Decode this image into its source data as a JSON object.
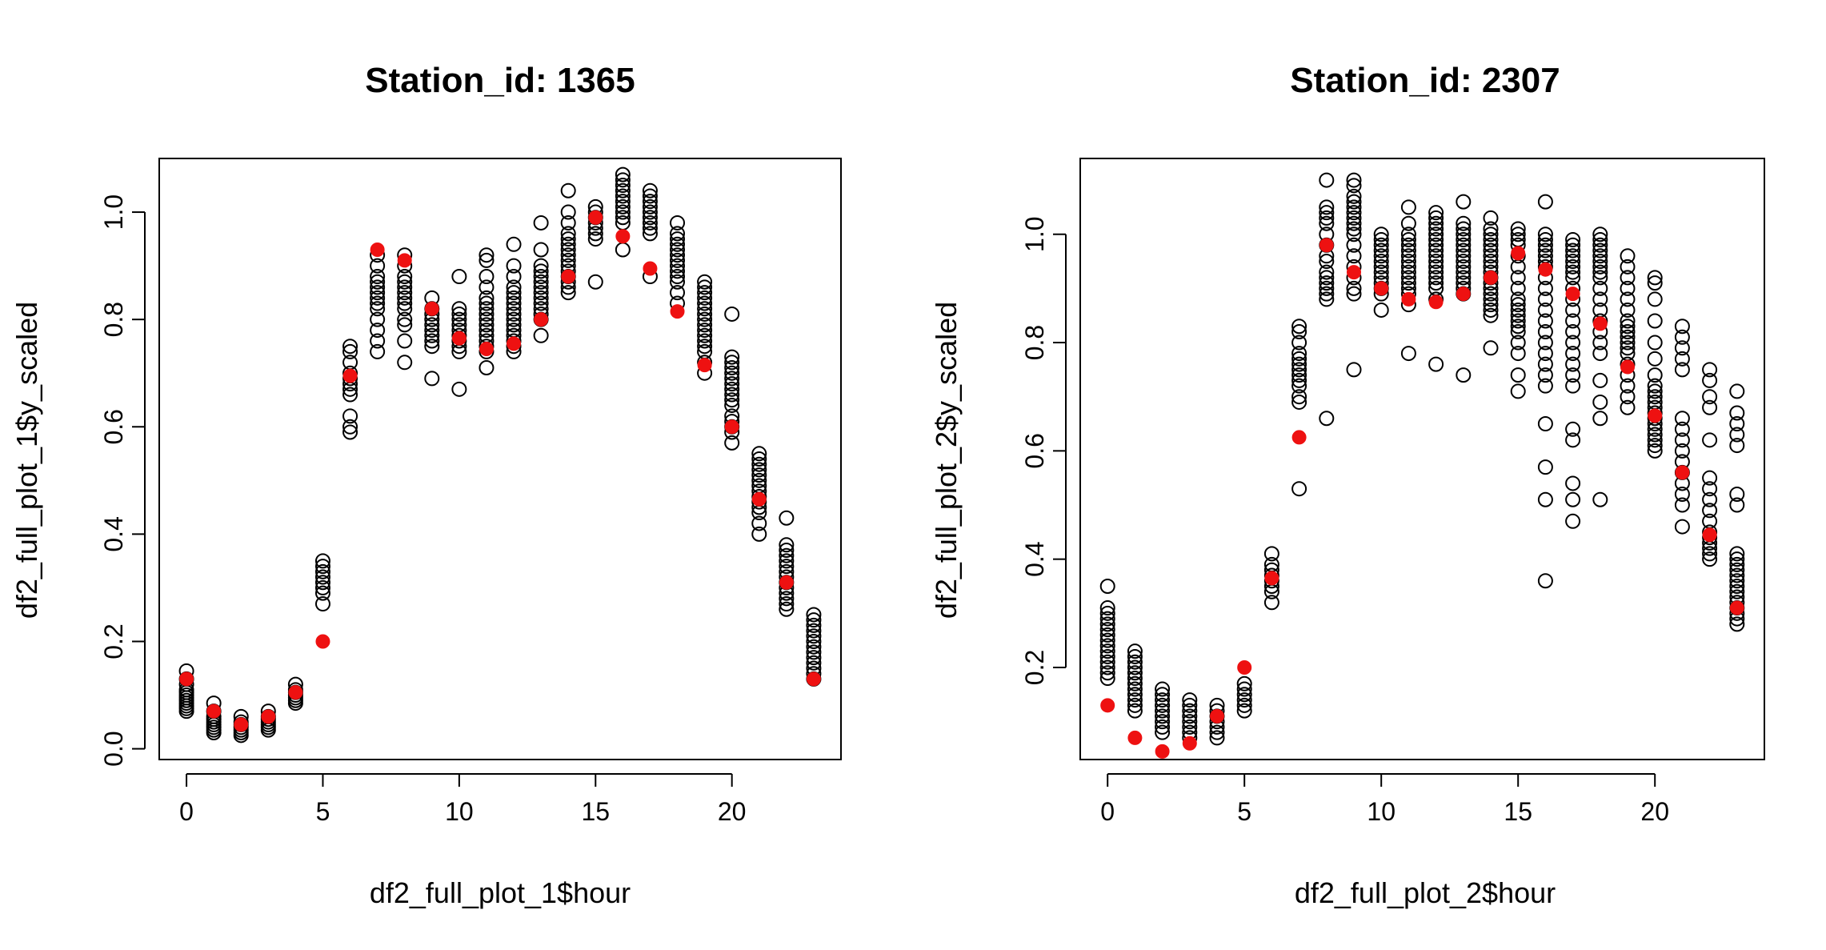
{
  "chart_data": [
    {
      "type": "scatter",
      "title": "Station_id: 1365",
      "xlabel": "df2_full_plot_1$hour",
      "ylabel": "df2_full_plot_1$y_scaled",
      "xlim": [
        -1,
        24
      ],
      "ylim": [
        -0.02,
        1.1
      ],
      "xticks": [
        0,
        5,
        10,
        15,
        20
      ],
      "yticks": [
        0.0,
        0.2,
        0.4,
        0.6,
        0.8,
        1.0
      ],
      "ytick_labels": [
        "0.0",
        "0.2",
        "0.4",
        "0.6",
        "0.8",
        "1.0"
      ],
      "open_color": "#000000",
      "mean_color": "#ee1111",
      "observations": [
        {
          "hour": 0,
          "values": [
            0.145,
            0.13,
            0.12,
            0.11,
            0.105,
            0.1,
            0.095,
            0.09,
            0.085,
            0.08,
            0.075,
            0.07
          ]
        },
        {
          "hour": 1,
          "values": [
            0.085,
            0.07,
            0.06,
            0.055,
            0.05,
            0.045,
            0.04,
            0.035,
            0.03
          ]
        },
        {
          "hour": 2,
          "values": [
            0.06,
            0.05,
            0.045,
            0.04,
            0.035,
            0.03,
            0.025
          ]
        },
        {
          "hour": 3,
          "values": [
            0.07,
            0.06,
            0.055,
            0.05,
            0.045,
            0.04,
            0.035
          ]
        },
        {
          "hour": 4,
          "values": [
            0.12,
            0.11,
            0.105,
            0.1,
            0.095,
            0.09,
            0.085
          ]
        },
        {
          "hour": 5,
          "values": [
            0.35,
            0.34,
            0.33,
            0.32,
            0.31,
            0.3,
            0.29,
            0.27
          ]
        },
        {
          "hour": 6,
          "values": [
            0.75,
            0.74,
            0.72,
            0.7,
            0.69,
            0.68,
            0.67,
            0.66,
            0.62,
            0.6,
            0.59
          ]
        },
        {
          "hour": 7,
          "values": [
            0.92,
            0.9,
            0.88,
            0.87,
            0.86,
            0.85,
            0.84,
            0.83,
            0.82,
            0.8,
            0.78,
            0.76,
            0.74
          ]
        },
        {
          "hour": 8,
          "values": [
            0.92,
            0.9,
            0.88,
            0.87,
            0.86,
            0.85,
            0.84,
            0.83,
            0.82,
            0.8,
            0.79,
            0.76,
            0.72
          ]
        },
        {
          "hour": 9,
          "values": [
            0.84,
            0.82,
            0.81,
            0.8,
            0.79,
            0.78,
            0.77,
            0.76,
            0.75,
            0.69
          ]
        },
        {
          "hour": 10,
          "values": [
            0.88,
            0.82,
            0.81,
            0.8,
            0.79,
            0.78,
            0.77,
            0.76,
            0.75,
            0.74,
            0.67
          ]
        },
        {
          "hour": 11,
          "values": [
            0.92,
            0.91,
            0.88,
            0.86,
            0.84,
            0.83,
            0.82,
            0.81,
            0.8,
            0.79,
            0.78,
            0.77,
            0.76,
            0.75,
            0.74,
            0.71
          ]
        },
        {
          "hour": 12,
          "values": [
            0.94,
            0.9,
            0.88,
            0.86,
            0.85,
            0.84,
            0.83,
            0.82,
            0.81,
            0.8,
            0.79,
            0.78,
            0.77,
            0.76,
            0.75,
            0.74
          ]
        },
        {
          "hour": 13,
          "values": [
            0.98,
            0.93,
            0.9,
            0.89,
            0.88,
            0.87,
            0.86,
            0.85,
            0.84,
            0.83,
            0.82,
            0.81,
            0.8,
            0.77
          ]
        },
        {
          "hour": 14,
          "values": [
            1.04,
            1.0,
            0.98,
            0.96,
            0.95,
            0.94,
            0.93,
            0.92,
            0.91,
            0.9,
            0.89,
            0.88,
            0.87,
            0.86,
            0.85
          ]
        },
        {
          "hour": 15,
          "values": [
            1.01,
            1.0,
            0.99,
            0.98,
            0.97,
            0.96,
            0.95,
            0.87
          ]
        },
        {
          "hour": 16,
          "values": [
            1.07,
            1.06,
            1.05,
            1.04,
            1.03,
            1.02,
            1.01,
            1.0,
            0.99,
            0.98,
            0.93
          ]
        },
        {
          "hour": 17,
          "values": [
            1.04,
            1.03,
            1.02,
            1.01,
            1.0,
            0.99,
            0.98,
            0.97,
            0.96,
            0.88
          ]
        },
        {
          "hour": 18,
          "values": [
            0.98,
            0.96,
            0.95,
            0.94,
            0.93,
            0.92,
            0.91,
            0.9,
            0.89,
            0.88,
            0.87,
            0.85,
            0.83
          ]
        },
        {
          "hour": 19,
          "values": [
            0.87,
            0.86,
            0.85,
            0.84,
            0.83,
            0.82,
            0.81,
            0.8,
            0.79,
            0.78,
            0.77,
            0.76,
            0.75,
            0.74,
            0.72,
            0.7
          ]
        },
        {
          "hour": 20,
          "values": [
            0.81,
            0.73,
            0.72,
            0.71,
            0.7,
            0.69,
            0.68,
            0.67,
            0.66,
            0.65,
            0.64,
            0.62,
            0.61,
            0.6,
            0.59,
            0.57
          ]
        },
        {
          "hour": 21,
          "values": [
            0.55,
            0.54,
            0.53,
            0.52,
            0.51,
            0.5,
            0.49,
            0.48,
            0.47,
            0.46,
            0.45,
            0.44,
            0.42,
            0.4
          ]
        },
        {
          "hour": 22,
          "values": [
            0.43,
            0.38,
            0.37,
            0.36,
            0.35,
            0.34,
            0.33,
            0.32,
            0.31,
            0.3,
            0.29,
            0.28,
            0.27,
            0.26
          ]
        },
        {
          "hour": 23,
          "values": [
            0.25,
            0.24,
            0.23,
            0.22,
            0.21,
            0.2,
            0.19,
            0.18,
            0.17,
            0.16,
            0.15,
            0.14,
            0.13
          ]
        }
      ],
      "means": [
        {
          "hour": 0,
          "value": 0.13
        },
        {
          "hour": 1,
          "value": 0.07
        },
        {
          "hour": 2,
          "value": 0.045
        },
        {
          "hour": 3,
          "value": 0.06
        },
        {
          "hour": 4,
          "value": 0.105
        },
        {
          "hour": 5,
          "value": 0.2
        },
        {
          "hour": 6,
          "value": 0.695
        },
        {
          "hour": 7,
          "value": 0.93
        },
        {
          "hour": 8,
          "value": 0.91
        },
        {
          "hour": 9,
          "value": 0.82
        },
        {
          "hour": 10,
          "value": 0.765
        },
        {
          "hour": 11,
          "value": 0.745
        },
        {
          "hour": 12,
          "value": 0.755
        },
        {
          "hour": 13,
          "value": 0.8
        },
        {
          "hour": 14,
          "value": 0.88
        },
        {
          "hour": 15,
          "value": 0.99
        },
        {
          "hour": 16,
          "value": 0.955
        },
        {
          "hour": 17,
          "value": 0.895
        },
        {
          "hour": 18,
          "value": 0.815
        },
        {
          "hour": 19,
          "value": 0.715
        },
        {
          "hour": 20,
          "value": 0.6
        },
        {
          "hour": 21,
          "value": 0.465
        },
        {
          "hour": 22,
          "value": 0.31
        },
        {
          "hour": 23,
          "value": 0.13
        }
      ]
    },
    {
      "type": "scatter",
      "title": "Station_id: 2307",
      "xlabel": "df2_full_plot_2$hour",
      "ylabel": "df2_full_plot_2$y_scaled",
      "xlim": [
        -1,
        24
      ],
      "ylim": [
        0.03,
        1.14
      ],
      "xticks": [
        0,
        5,
        10,
        15,
        20
      ],
      "yticks": [
        0.2,
        0.4,
        0.6,
        0.8,
        1.0
      ],
      "ytick_labels": [
        "0.2",
        "0.4",
        "0.6",
        "0.8",
        "1.0"
      ],
      "open_color": "#000000",
      "mean_color": "#ee1111",
      "observations": [
        {
          "hour": 0,
          "values": [
            0.35,
            0.31,
            0.3,
            0.29,
            0.28,
            0.27,
            0.26,
            0.25,
            0.24,
            0.23,
            0.22,
            0.21,
            0.2,
            0.19,
            0.18
          ]
        },
        {
          "hour": 1,
          "values": [
            0.23,
            0.22,
            0.21,
            0.2,
            0.19,
            0.18,
            0.17,
            0.16,
            0.15,
            0.14,
            0.13,
            0.12
          ]
        },
        {
          "hour": 2,
          "values": [
            0.16,
            0.15,
            0.14,
            0.13,
            0.12,
            0.11,
            0.1,
            0.09,
            0.08
          ]
        },
        {
          "hour": 3,
          "values": [
            0.14,
            0.13,
            0.12,
            0.11,
            0.1,
            0.09,
            0.08,
            0.07
          ]
        },
        {
          "hour": 4,
          "values": [
            0.13,
            0.12,
            0.11,
            0.1,
            0.09,
            0.08,
            0.07
          ]
        },
        {
          "hour": 5,
          "values": [
            0.17,
            0.16,
            0.15,
            0.14,
            0.13,
            0.12
          ]
        },
        {
          "hour": 6,
          "values": [
            0.41,
            0.39,
            0.38,
            0.37,
            0.36,
            0.35,
            0.34,
            0.32
          ]
        },
        {
          "hour": 7,
          "values": [
            0.83,
            0.82,
            0.8,
            0.78,
            0.77,
            0.76,
            0.75,
            0.74,
            0.73,
            0.72,
            0.7,
            0.69,
            0.53
          ]
        },
        {
          "hour": 8,
          "values": [
            1.1,
            1.05,
            1.04,
            1.03,
            1.02,
            1.0,
            0.98,
            0.96,
            0.95,
            0.93,
            0.92,
            0.91,
            0.9,
            0.89,
            0.88,
            0.66
          ]
        },
        {
          "hour": 9,
          "values": [
            1.1,
            1.09,
            1.07,
            1.06,
            1.05,
            1.04,
            1.03,
            1.02,
            1.01,
            1.0,
            0.98,
            0.96,
            0.94,
            0.92,
            0.9,
            0.89,
            0.75
          ]
        },
        {
          "hour": 10,
          "values": [
            1.0,
            0.99,
            0.98,
            0.97,
            0.96,
            0.95,
            0.94,
            0.93,
            0.92,
            0.91,
            0.9,
            0.89,
            0.86
          ]
        },
        {
          "hour": 11,
          "values": [
            1.05,
            1.02,
            1.0,
            0.99,
            0.98,
            0.97,
            0.96,
            0.95,
            0.94,
            0.93,
            0.92,
            0.91,
            0.9,
            0.89,
            0.87,
            0.78
          ]
        },
        {
          "hour": 12,
          "values": [
            1.04,
            1.03,
            1.02,
            1.01,
            1.0,
            0.99,
            0.98,
            0.97,
            0.96,
            0.95,
            0.94,
            0.93,
            0.92,
            0.91,
            0.9,
            0.88,
            0.76
          ]
        },
        {
          "hour": 13,
          "values": [
            1.06,
            1.02,
            1.01,
            1.0,
            0.99,
            0.98,
            0.97,
            0.96,
            0.95,
            0.94,
            0.93,
            0.92,
            0.91,
            0.9,
            0.89,
            0.74
          ]
        },
        {
          "hour": 14,
          "values": [
            1.03,
            1.01,
            1.0,
            0.99,
            0.98,
            0.97,
            0.96,
            0.95,
            0.94,
            0.93,
            0.92,
            0.91,
            0.9,
            0.89,
            0.88,
            0.87,
            0.86,
            0.85,
            0.79
          ]
        },
        {
          "hour": 15,
          "values": [
            1.01,
            1.0,
            0.99,
            0.98,
            0.96,
            0.94,
            0.92,
            0.9,
            0.88,
            0.87,
            0.86,
            0.85,
            0.84,
            0.83,
            0.82,
            0.8,
            0.78,
            0.74,
            0.71
          ]
        },
        {
          "hour": 16,
          "values": [
            1.06,
            1.0,
            0.99,
            0.98,
            0.97,
            0.96,
            0.95,
            0.94,
            0.92,
            0.9,
            0.88,
            0.86,
            0.84,
            0.82,
            0.8,
            0.78,
            0.76,
            0.74,
            0.72,
            0.65,
            0.57,
            0.51,
            0.36
          ]
        },
        {
          "hour": 17,
          "values": [
            0.99,
            0.98,
            0.97,
            0.96,
            0.95,
            0.94,
            0.93,
            0.92,
            0.9,
            0.88,
            0.86,
            0.84,
            0.82,
            0.8,
            0.78,
            0.76,
            0.74,
            0.72,
            0.64,
            0.62,
            0.54,
            0.51,
            0.47
          ]
        },
        {
          "hour": 18,
          "values": [
            1.0,
            0.99,
            0.98,
            0.97,
            0.96,
            0.95,
            0.94,
            0.93,
            0.92,
            0.9,
            0.88,
            0.86,
            0.84,
            0.82,
            0.8,
            0.78,
            0.73,
            0.69,
            0.66,
            0.51
          ]
        },
        {
          "hour": 19,
          "values": [
            0.96,
            0.94,
            0.92,
            0.9,
            0.88,
            0.86,
            0.84,
            0.83,
            0.82,
            0.81,
            0.8,
            0.79,
            0.78,
            0.76,
            0.74,
            0.72,
            0.7,
            0.68
          ]
        },
        {
          "hour": 20,
          "values": [
            0.92,
            0.91,
            0.88,
            0.84,
            0.8,
            0.77,
            0.74,
            0.72,
            0.71,
            0.7,
            0.69,
            0.68,
            0.67,
            0.66,
            0.65,
            0.64,
            0.63,
            0.62,
            0.61,
            0.6
          ]
        },
        {
          "hour": 21,
          "values": [
            0.83,
            0.81,
            0.79,
            0.77,
            0.75,
            0.66,
            0.64,
            0.62,
            0.6,
            0.58,
            0.56,
            0.54,
            0.52,
            0.5,
            0.46
          ]
        },
        {
          "hour": 22,
          "values": [
            0.75,
            0.73,
            0.7,
            0.68,
            0.62,
            0.55,
            0.53,
            0.51,
            0.49,
            0.47,
            0.45,
            0.44,
            0.43,
            0.42,
            0.41,
            0.4
          ]
        },
        {
          "hour": 23,
          "values": [
            0.71,
            0.67,
            0.65,
            0.63,
            0.61,
            0.52,
            0.5,
            0.41,
            0.4,
            0.39,
            0.38,
            0.37,
            0.36,
            0.35,
            0.34,
            0.33,
            0.32,
            0.31,
            0.3,
            0.29,
            0.28
          ]
        }
      ],
      "means": [
        {
          "hour": 0,
          "value": 0.13
        },
        {
          "hour": 1,
          "value": 0.07
        },
        {
          "hour": 2,
          "value": 0.045
        },
        {
          "hour": 3,
          "value": 0.06
        },
        {
          "hour": 4,
          "value": 0.11
        },
        {
          "hour": 5,
          "value": 0.2
        },
        {
          "hour": 6,
          "value": 0.365
        },
        {
          "hour": 7,
          "value": 0.625
        },
        {
          "hour": 8,
          "value": 0.98
        },
        {
          "hour": 9,
          "value": 0.93
        },
        {
          "hour": 10,
          "value": 0.9
        },
        {
          "hour": 11,
          "value": 0.88
        },
        {
          "hour": 12,
          "value": 0.875
        },
        {
          "hour": 13,
          "value": 0.89
        },
        {
          "hour": 14,
          "value": 0.92
        },
        {
          "hour": 15,
          "value": 0.965
        },
        {
          "hour": 16,
          "value": 0.935
        },
        {
          "hour": 17,
          "value": 0.89
        },
        {
          "hour": 18,
          "value": 0.835
        },
        {
          "hour": 19,
          "value": 0.755
        },
        {
          "hour": 20,
          "value": 0.665
        },
        {
          "hour": 21,
          "value": 0.56
        },
        {
          "hour": 22,
          "value": 0.445
        },
        {
          "hour": 23,
          "value": 0.31
        }
      ]
    }
  ]
}
